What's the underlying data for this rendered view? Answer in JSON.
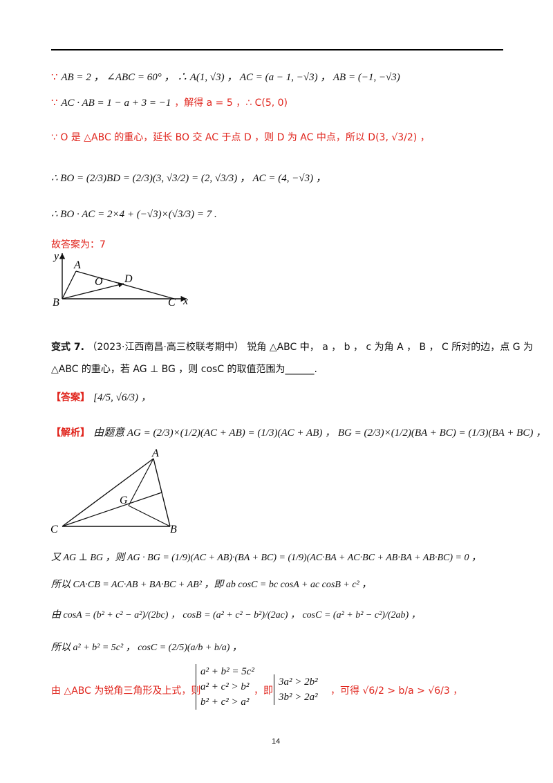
{
  "page_number": "14",
  "solution_top": {
    "line1_prefix": "∵",
    "line1_math": "AB = 2 ， ∠ABC = 60° ， ∴ A(1, √3) ， AC = (a − 1, −√3) ， AB = (−1, −√3)",
    "line2_prefix": "∵",
    "line2_math": "AC · AB = 1 − a + 3 = −1",
    "line2_text": "，解得 a = 5 ，∴ C(5, 0)",
    "line3": "∵ O 是 △ABC 的重心，延长 BO 交 AC 于点 D ，则 D 为 AC 中点，所以 D(3, √3/2) ，",
    "line4": "∴ BO = (2/3)BD = (2/3)(3, √3/2) = (2, √3/3) ， AC = (4, −√3) ，",
    "line5": "∴ BO · AC = 2×4 + (−√3)×(√3/3) = 7 .",
    "answer": "故答案为：7"
  },
  "figure1": {
    "labels": [
      "y",
      "A",
      "O",
      "D",
      "B",
      "C",
      "x"
    ]
  },
  "problem": {
    "title": "变式 7.",
    "source": "（2023·江西南昌·高三校联考期中）",
    "text1": "锐角 △ABC 中， a ， b ， c 为角 A ， B ， C 所对的边，点 G 为",
    "text2": "△ABC 的重心，若 AG ⊥ BG ，则 cosC 的取值范围为______."
  },
  "answer_block": {
    "tag": "【答案】",
    "value": "[4/5, √6/3) ，"
  },
  "analysis": {
    "tag": "【解析】",
    "line1": "由题意 AG = (2/3)×(1/2)(AC + AB) = (1/3)(AC + AB) ， BG = (2/3)×(1/2)(BA + BC) = (1/3)(BA + BC) ，",
    "line2": "又 AG ⊥ BG ，则 AG · BG = (1/9)(AC + AB)·(BA + BC) = (1/9)(AC·BA + AC·BC + AB·BA + AB·BC) = 0 ，",
    "line3": "所以 CA·CB = AC·AB + BA·BC + AB² ，即 ab cosC = bc cosA + ac cosB + c² ，",
    "line4": "由 cosA = (b² + c² − a²)/(2bc) ， cosB = (a² + c² − b²)/(2ac) ， cosC = (a² + b² − c²)/(2ab) ，",
    "line5": "所以 a² + b² = 5c² ， cosC = (2/5)(a/b + b/a) ，",
    "line6_a": "由 △ABC 为锐角三角形及上式，则",
    "sys1": [
      "a² + b² = 5c²",
      "a² + c² > b²",
      "b² + c² > a²"
    ],
    "line6_b": "，即",
    "sys2": [
      "3a² > 2b²",
      "3b² > 2a²"
    ],
    "line6_c": "，可得 √6/2 > b/a > √6/3 ，"
  },
  "figure2": {
    "labels": [
      "A",
      "G",
      "C",
      "B"
    ]
  }
}
